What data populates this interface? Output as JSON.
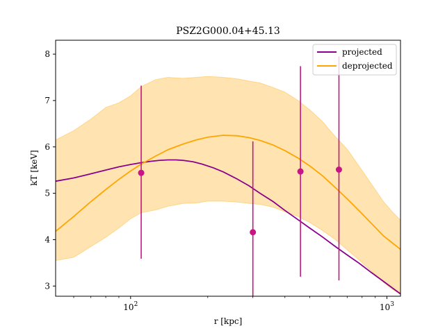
{
  "chart_data": {
    "type": "line",
    "title": "PSZ2G000.04+45.13",
    "xlabel": "r [kpc]",
    "ylabel": "kT [keV]",
    "xscale": "log",
    "xlim": [
      51,
      1130
    ],
    "ylim": [
      2.78,
      8.3
    ],
    "x_ticks": [
      {
        "value": 100,
        "base": "10",
        "exp": "2"
      },
      {
        "value": 1000,
        "base": "10",
        "exp": "3"
      }
    ],
    "y_ticks": [
      {
        "value": 3,
        "label": "3"
      },
      {
        "value": 4,
        "label": "4"
      },
      {
        "value": 5,
        "label": "5"
      },
      {
        "value": 6,
        "label": "6"
      },
      {
        "value": 7,
        "label": "7"
      },
      {
        "value": 8,
        "label": "8"
      }
    ],
    "legend": {
      "position": "top-right"
    },
    "series": [
      {
        "name": "projected",
        "color": "#8b008b",
        "x": [
          51,
          60,
          70,
          80,
          90,
          100,
          110,
          120,
          130,
          140,
          150,
          160,
          175,
          190,
          210,
          230,
          260,
          290,
          320,
          360,
          400,
          450,
          500,
          560,
          630,
          700,
          780,
          870,
          970,
          1050,
          1130
        ],
        "y": [
          5.26,
          5.33,
          5.42,
          5.5,
          5.57,
          5.62,
          5.66,
          5.69,
          5.71,
          5.72,
          5.72,
          5.71,
          5.68,
          5.63,
          5.55,
          5.46,
          5.31,
          5.16,
          5.0,
          4.82,
          4.63,
          4.43,
          4.25,
          4.06,
          3.85,
          3.67,
          3.49,
          3.29,
          3.1,
          2.96,
          2.83
        ]
      },
      {
        "name": "deprojected",
        "color": "#ffa500",
        "x": [
          51,
          60,
          70,
          80,
          90,
          100,
          110,
          125,
          140,
          160,
          180,
          200,
          230,
          260,
          290,
          320,
          360,
          400,
          450,
          500,
          560,
          630,
          700,
          780,
          870,
          970,
          1050,
          1130
        ],
        "y": [
          4.18,
          4.5,
          4.82,
          5.08,
          5.3,
          5.48,
          5.63,
          5.8,
          5.94,
          6.06,
          6.15,
          6.21,
          6.25,
          6.24,
          6.2,
          6.14,
          6.04,
          5.92,
          5.76,
          5.59,
          5.38,
          5.12,
          4.88,
          4.62,
          4.35,
          4.08,
          3.93,
          3.79
        ],
        "band_lower": [
          3.55,
          3.62,
          3.85,
          4.05,
          4.25,
          4.45,
          4.58,
          4.64,
          4.72,
          4.78,
          4.79,
          4.83,
          4.83,
          4.81,
          4.78,
          4.76,
          4.7,
          4.6,
          4.5,
          4.37,
          4.2,
          4.0,
          3.78,
          3.56,
          3.32,
          3.08,
          2.93,
          2.82
        ],
        "band_upper": [
          6.15,
          6.35,
          6.6,
          6.85,
          6.95,
          7.1,
          7.3,
          7.45,
          7.5,
          7.48,
          7.5,
          7.52,
          7.5,
          7.47,
          7.42,
          7.38,
          7.28,
          7.18,
          7.0,
          6.8,
          6.55,
          6.22,
          5.95,
          5.58,
          5.2,
          4.82,
          4.6,
          4.42
        ]
      }
    ],
    "points": {
      "color": "#c71585",
      "x": [
        110,
        300,
        460,
        650
      ],
      "y": [
        5.44,
        4.16,
        5.47,
        5.51
      ],
      "yerr_low": [
        3.59,
        2.78,
        3.2,
        3.12
      ],
      "yerr_high": [
        7.32,
        6.12,
        7.74,
        7.95
      ]
    }
  }
}
